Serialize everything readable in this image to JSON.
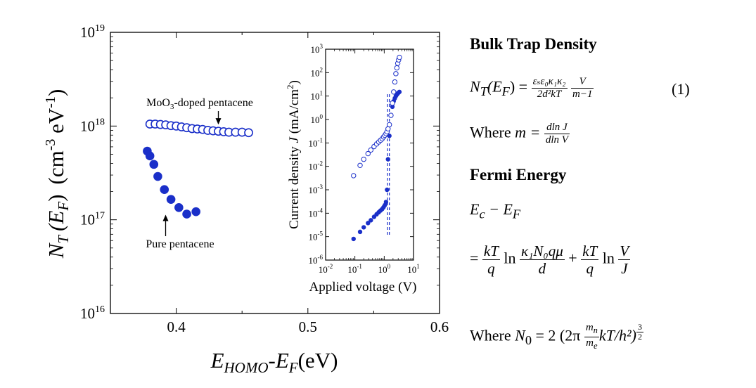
{
  "chart_data": [
    {
      "type": "scatter",
      "title": "",
      "xlabel_main": "E",
      "xlabel_sub1": "HOMO",
      "xlabel_mid": "-E",
      "xlabel_sub2": "F",
      "xlabel_unit": "(eV)",
      "ylabel_main": "N",
      "ylabel_sub": "T",
      "ylabel_paren": "(E",
      "ylabel_sub2": "F",
      "ylabel_close": ")",
      "ylabel_unit": "(cm",
      "ylabel_exp1": "-3",
      "ylabel_unit2": " eV",
      "ylabel_exp2": "-1",
      "ylabel_unit3": ")",
      "xlim": [
        0.35,
        0.6
      ],
      "ylim_log10": [
        16,
        19
      ],
      "log_y": true,
      "x_ticks": [
        "0.4",
        "0.5",
        "0.6"
      ],
      "x_tick_values": [
        0.4,
        0.5,
        0.6
      ],
      "y_ticks_base": "10",
      "y_ticks_exp": [
        "16",
        "17",
        "18",
        "19"
      ],
      "y_tick_values_log10": [
        16,
        17,
        18,
        19
      ],
      "series": [
        {
          "marker": "filled-circle",
          "color": "#1a2fc9",
          "x": [
            0.378,
            0.38,
            0.383,
            0.386,
            0.391,
            0.396,
            0.402,
            0.408,
            0.415
          ],
          "y": [
            5.4e+17,
            4.8e+17,
            3.9e+17,
            2.9e+17,
            2.1e+17,
            1.65e+17,
            1.35e+17,
            1.15e+17,
            1.22e+17
          ]
        },
        {
          "marker": "open-circle",
          "color": "#1a2fc9",
          "x": [
            0.38,
            0.384,
            0.388,
            0.392,
            0.396,
            0.4,
            0.404,
            0.408,
            0.412,
            0.416,
            0.42,
            0.424,
            0.428,
            0.432,
            0.436,
            0.44,
            0.445,
            0.45,
            0.455
          ],
          "y": [
            1.05e+18,
            1.05e+18,
            1.04e+18,
            1.03e+18,
            1.01e+18,
            1e+18,
            9.8e+17,
            9.6e+17,
            9.4e+17,
            9.3e+17,
            9.2e+17,
            9e+17,
            8.9e+17,
            8.8e+17,
            8.7e+17,
            8.6e+17,
            8.6e+17,
            8.6e+17,
            8.5e+17
          ]
        }
      ],
      "annotations": [
        {
          "text_pre": "MoO",
          "text_sub": "3",
          "text_post": "-doped pentacene",
          "arrow_to_x": 0.432,
          "arrow_to_y": 8.9e+17
        },
        {
          "text": "Pure pentacene",
          "arrow_to_x": 0.393,
          "arrow_to_y": 1.6e+17
        }
      ]
    },
    {
      "type": "scatter",
      "title": "",
      "xlabel": "Applied voltage (V)",
      "ylabel_pre": "Current density ",
      "ylabel_var": "J",
      "ylabel_post": "  (mA/cm",
      "ylabel_exp": "2",
      "ylabel_close": ")",
      "log_x": true,
      "log_y": true,
      "xlim_log10": [
        -2,
        1
      ],
      "ylim_log10": [
        -6,
        3
      ],
      "x_ticks_base": "10",
      "x_ticks_exp": [
        "-2",
        "-1",
        "0",
        "1"
      ],
      "y_ticks_base": "10",
      "y_ticks_exp": [
        "-6",
        "-5",
        "-4",
        "-3",
        "-2",
        "-1",
        "0",
        "1",
        "2",
        "3"
      ],
      "series": [
        {
          "marker": "filled-circle",
          "color": "#1a2fc9",
          "x": [
            0.09,
            0.15,
            0.2,
            0.28,
            0.35,
            0.45,
            0.55,
            0.65,
            0.75,
            0.85,
            0.95,
            1.05,
            1.15,
            1.25,
            1.35,
            1.5,
            1.7,
            1.9,
            2.1,
            2.3,
            2.5,
            2.7,
            2.9,
            3.1,
            3.3
          ],
          "y": [
            8e-06,
            1.6e-05,
            2.5e-05,
            3.8e-05,
            5e-05,
            7e-05,
            9e-05,
            0.00011,
            0.00013,
            0.00015,
            0.00018,
            0.00022,
            0.0003,
            0.001,
            0.02,
            0.2,
            1.5,
            3.5,
            6,
            8,
            10,
            11.5,
            13,
            14,
            15
          ]
        },
        {
          "marker": "open-circle",
          "color": "#1a2fc9",
          "x": [
            0.09,
            0.15,
            0.2,
            0.28,
            0.35,
            0.45,
            0.55,
            0.65,
            0.75,
            0.85,
            0.95,
            1.05,
            1.15,
            1.25,
            1.35,
            1.5,
            1.7,
            1.9,
            2.1,
            2.3,
            2.5,
            2.7,
            2.9,
            3.1,
            3.3
          ],
          "y": [
            0.004,
            0.011,
            0.02,
            0.035,
            0.05,
            0.07,
            0.09,
            0.11,
            0.13,
            0.15,
            0.18,
            0.21,
            0.25,
            0.3,
            0.4,
            0.6,
            1.5,
            5,
            15,
            40,
            90,
            160,
            250,
            350,
            450
          ]
        }
      ],
      "dashed_lines_x": [
        1.3,
        1.5
      ]
    }
  ],
  "equations": {
    "h1": "Bulk Trap Density",
    "e1_lhs": "N",
    "e1_lhs_sub": "T",
    "e1_lhs_arg": "(E",
    "e1_lhs_arg_sub": "F",
    "e1_lhs_close": ") =",
    "e1_num": "εₛε₀κ₁κ₂",
    "e1_den": "2d²kT",
    "e1_num2": "V",
    "e1_den2": "m−1",
    "e1_number": "(1)",
    "w1_pre": "Where",
    "w1_var": "m =",
    "w1_num": "dln J",
    "w1_den": "dln V",
    "h2": "Fermi Energy",
    "e2_l1": "E",
    "e2_l1_sub": "c",
    "e2_l1_mid": " − E",
    "e2_l1_sub2": "F",
    "e2_eq": "=",
    "e2_f1_num": "kT",
    "e2_f1_den": "q",
    "e2_ln": "ln",
    "e2_f2_num": "κ₁N₀qμ",
    "e2_f2_den": "d",
    "e2_plus": "+",
    "e2_f3_num": "kT",
    "e2_f3_den": "q",
    "e2_ln2": "ln",
    "e2_f4_num": "V",
    "e2_f4_den": "J",
    "w2_pre": "Where",
    "w2_var": "N",
    "w2_var_sub": "0",
    "w2_eq": " = 2 (2π",
    "w2_fnum": "m",
    "w2_fnum_sub": "n",
    "w2_fden": "m",
    "w2_fden_sub": "e",
    "w2_tail": "kT/h²)",
    "w2_exp_num": "3",
    "w2_exp_den": "2"
  }
}
